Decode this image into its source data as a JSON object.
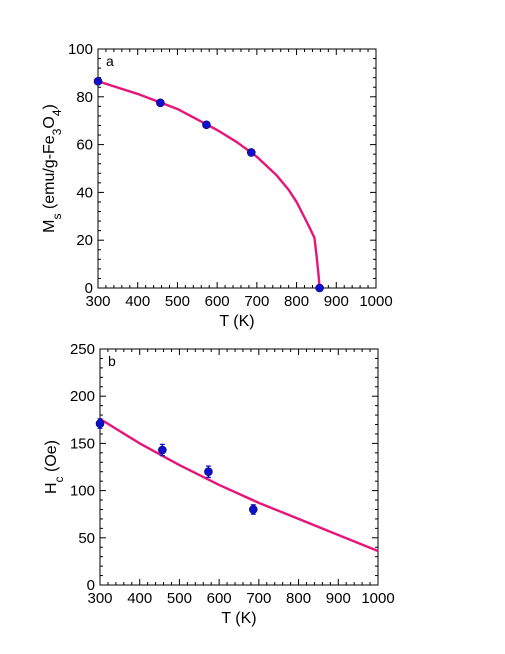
{
  "chart_data": [
    {
      "type": "scatter",
      "panel_label": "a",
      "xlabel": "T (K)",
      "ylabel": "M_s (emu/g-Fe3O4)",
      "xlim": [
        300,
        1000
      ],
      "ylim": [
        0,
        100
      ],
      "xticks": [
        300,
        400,
        500,
        600,
        700,
        800,
        900,
        1000
      ],
      "yticks": [
        0,
        20,
        40,
        60,
        80,
        100
      ],
      "grid": false,
      "legend": "none",
      "series": [
        {
          "kind": "points",
          "color": "#1010cc",
          "x": [
            300,
            457,
            573,
            686,
            858
          ],
          "y": [
            86.5,
            77.5,
            68.3,
            56.7,
            0
          ]
        },
        {
          "kind": "line",
          "color": "#e6157a",
          "x": [
            300,
            400,
            500,
            600,
            650,
            700,
            750,
            780,
            800,
            820,
            835,
            845,
            850,
            855,
            858
          ],
          "y": [
            86.5,
            81.2,
            74.9,
            66.1,
            61.0,
            54.9,
            47.1,
            41.1,
            36.0,
            29.5,
            24.5,
            21.0,
            14.0,
            6.0,
            0
          ]
        }
      ]
    },
    {
      "type": "scatter",
      "panel_label": "b",
      "xlabel": "T (K)",
      "ylabel": "H_c (Oe)",
      "xlim": [
        300,
        1000
      ],
      "ylim": [
        0,
        250
      ],
      "xticks": [
        300,
        400,
        500,
        600,
        700,
        800,
        900,
        1000
      ],
      "yticks": [
        0,
        50,
        100,
        150,
        200,
        250
      ],
      "grid": false,
      "legend": "none",
      "series": [
        {
          "kind": "points",
          "color": "#1010cc",
          "x": [
            300,
            457,
            573,
            686
          ],
          "y": [
            171,
            143,
            120,
            80
          ],
          "err": [
            5,
            6,
            6,
            5
          ]
        },
        {
          "kind": "line",
          "color": "#e6157a",
          "x": [
            300,
            400,
            500,
            600,
            700,
            800,
            900,
            1000
          ],
          "y": [
            176,
            150,
            127,
            106,
            87,
            70,
            53,
            36
          ]
        }
      ]
    }
  ]
}
